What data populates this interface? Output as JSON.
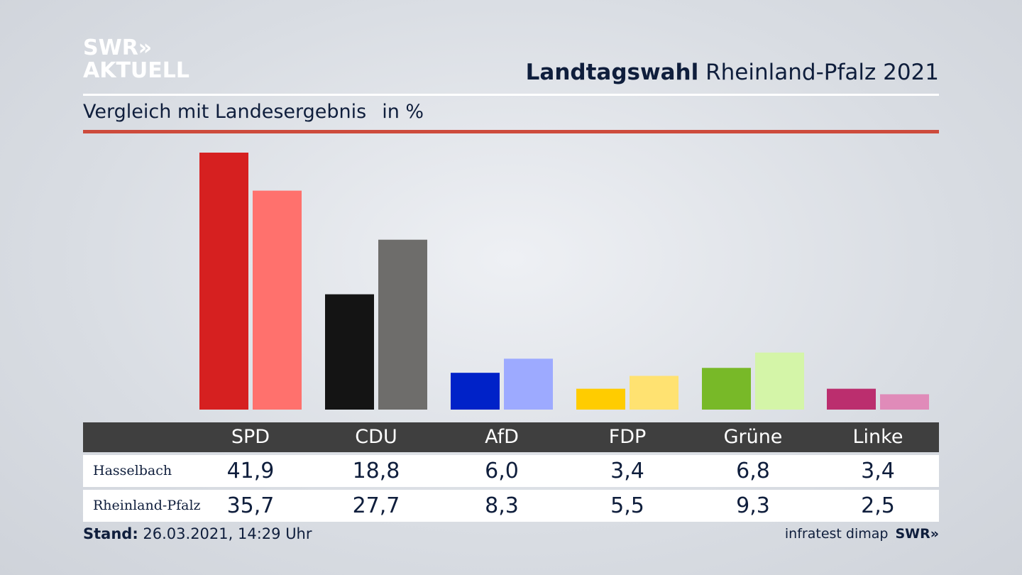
{
  "brand": {
    "line1": "SWR»",
    "line2": "AKTUELL"
  },
  "header": {
    "title_bold": "Landtagswahl",
    "title_rest": "Rheinland-Pfalz 2021"
  },
  "subtitle": {
    "text": "Vergleich mit Landesergebnis",
    "unit": "in %"
  },
  "colors": {
    "rule_red": "#cd4b3c",
    "table_header": "#3f3f3f"
  },
  "chart_data": {
    "type": "bar",
    "categories": [
      "SPD",
      "CDU",
      "AfD",
      "FDP",
      "Grüne",
      "Linke"
    ],
    "series": [
      {
        "name": "Hasselbach",
        "values": [
          41.9,
          18.8,
          6.0,
          3.4,
          6.8,
          3.4
        ],
        "colors": [
          "#d62020",
          "#141414",
          "#0022c8",
          "#ffcc00",
          "#78b928",
          "#bb2e6e"
        ]
      },
      {
        "name": "Rheinland-Pfalz",
        "values": [
          35.7,
          27.7,
          8.3,
          5.5,
          9.3,
          2.5
        ],
        "colors": [
          "#ff716d",
          "#6e6d6b",
          "#9daaff",
          "#ffe271",
          "#d4f5a8",
          "#e08bb9"
        ]
      }
    ],
    "ylim": [
      0,
      41.9
    ],
    "table": {
      "rows": [
        {
          "label": "Hasselbach",
          "values": [
            "41,9",
            "18,8",
            "6,0",
            "3,4",
            "6,8",
            "3,4"
          ]
        },
        {
          "label": "Rheinland-Pfalz",
          "values": [
            "35,7",
            "27,7",
            "8,3",
            "5,5",
            "9,3",
            "2,5"
          ]
        }
      ]
    }
  },
  "footer": {
    "stand_label": "Stand:",
    "stand_value": "26.03.2021, 14:29 Uhr",
    "source": "infratest dimap",
    "source_brand": "SWR»"
  }
}
